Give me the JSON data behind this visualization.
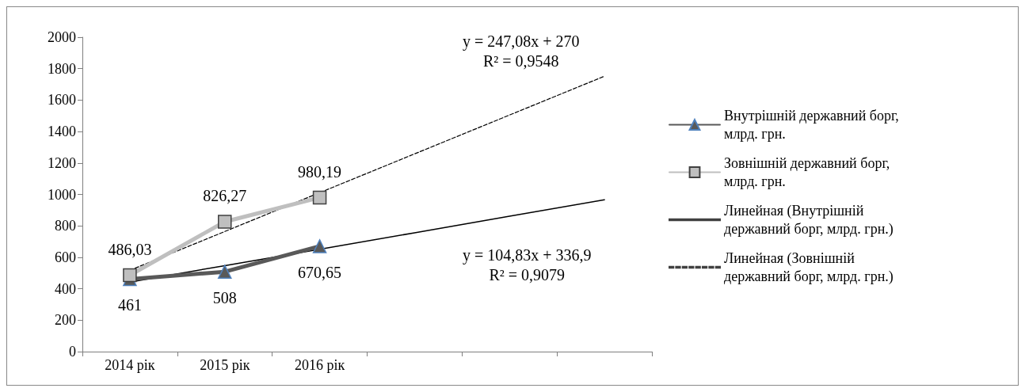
{
  "chart_data": {
    "type": "line",
    "categories": [
      "2014 рік",
      "2015 рік",
      "2016 рік",
      null,
      null,
      null
    ],
    "ylim": [
      0,
      2000
    ],
    "yticks": [
      0,
      200,
      400,
      600,
      800,
      1000,
      1200,
      1400,
      1600,
      1800,
      2000
    ],
    "grid": false,
    "legend": "right",
    "series": [
      {
        "name": "Внутрішній державний борг, млрд. грн.",
        "color": "#595959",
        "marker": "triangle",
        "line_style": "solid",
        "values": [
          461,
          508,
          670.65,
          null,
          null,
          null
        ],
        "value_labels": [
          "461",
          "508",
          "670,65",
          null,
          null,
          null
        ]
      },
      {
        "name": "Зовнішній державний борг, млрд. грн.",
        "color": "#bfbfbf",
        "marker": "square",
        "line_style": "solid",
        "values": [
          486.03,
          826.27,
          980.19,
          null,
          null,
          null
        ],
        "value_labels": [
          "486,03",
          "826,27",
          "980,19",
          null,
          null,
          null
        ]
      },
      {
        "name": "Линейная (Внутрішній державний борг, млрд. грн.)",
        "color": "#000000",
        "marker": "none",
        "line_style": "solid",
        "values": [
          442,
          547,
          651,
          756,
          861,
          966
        ]
      },
      {
        "name": "Линейная (Зовнішній державний борг, млрд. грн.)",
        "color": "#000000",
        "marker": "none",
        "line_style": "dashed",
        "values": [
          517,
          764,
          1011,
          1258,
          1505,
          1752
        ]
      }
    ],
    "annotations": [
      "y = 247,08x + 270\nR² = 0,9548",
      "y = 104,83x + 336,9\nR² = 0,9079"
    ]
  }
}
